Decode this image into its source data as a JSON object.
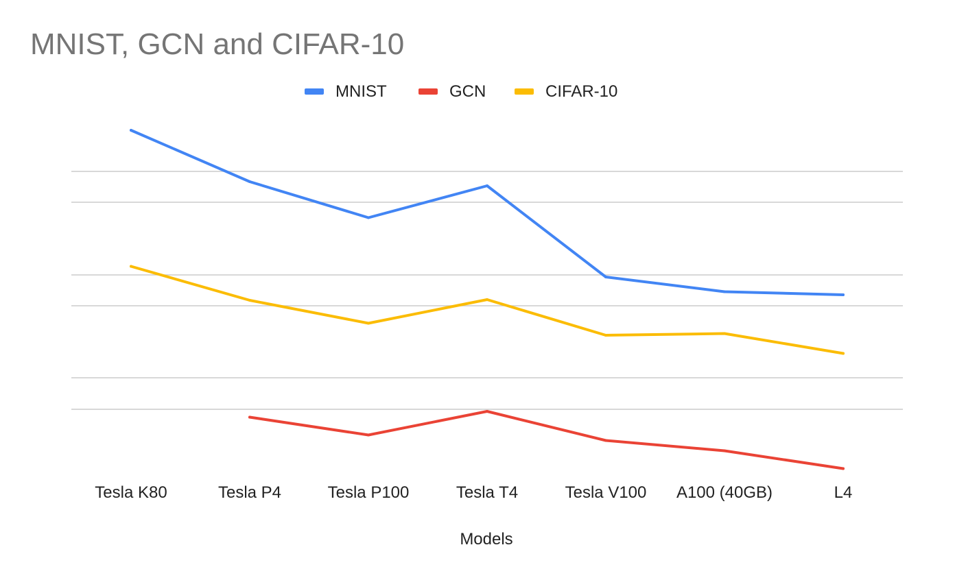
{
  "chart_data": {
    "type": "line",
    "title": "MNIST, GCN and CIFAR-10",
    "xlabel": "Models",
    "ylabel": "",
    "categories": [
      "Tesla K80",
      "Tesla P4",
      "Tesla P100",
      "Tesla T4",
      "Tesla V100",
      "A100 (40GB)",
      "L4"
    ],
    "ylim": [
      0,
      100
    ],
    "y_tick_labels_shown": false,
    "grid": true,
    "legend": "top",
    "series": [
      {
        "name": "MNIST",
        "color": "#4285F4",
        "values": [
          100,
          85,
          74.5,
          83.8,
          57.2,
          52.9,
          52
        ]
      },
      {
        "name": "GCN",
        "color": "#EA4335",
        "values": [
          null,
          16.3,
          11.1,
          18,
          9.5,
          6.5,
          1.3
        ]
      },
      {
        "name": "CIFAR-10",
        "color": "#FBBC04",
        "values": [
          60.3,
          50.4,
          43.7,
          50.6,
          40.2,
          40.7,
          34.9
        ]
      }
    ]
  }
}
